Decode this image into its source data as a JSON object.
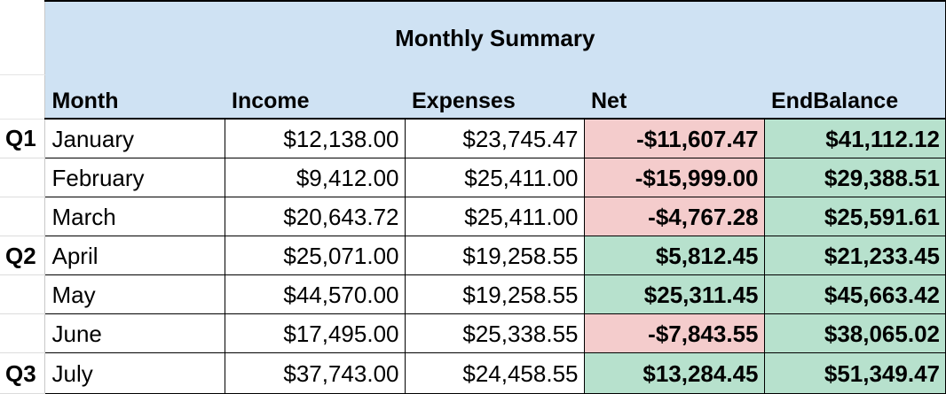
{
  "sheet": {
    "title": "Monthly Summary",
    "headers": [
      "Month",
      "Income",
      "Expenses",
      "Net",
      "EndBalance"
    ],
    "colors": {
      "header_fill": "#cfe2f3",
      "negative_fill": "#f4cccc",
      "positive_fill": "#b7e1cd"
    },
    "rows": [
      {
        "quarter": "Q1",
        "month": "January",
        "income": "$12,138.00",
        "expenses": "$23,745.47",
        "net": "-$11,607.47",
        "end_balance": "$41,112.12",
        "net_status": "negative"
      },
      {
        "quarter": "",
        "month": "February",
        "income": "$9,412.00",
        "expenses": "$25,411.00",
        "net": "-$15,999.00",
        "end_balance": "$29,388.51",
        "net_status": "negative"
      },
      {
        "quarter": "",
        "month": "March",
        "income": "$20,643.72",
        "expenses": "$25,411.00",
        "net": "-$4,767.28",
        "end_balance": "$25,591.61",
        "net_status": "negative"
      },
      {
        "quarter": "Q2",
        "month": "April",
        "income": "$25,071.00",
        "expenses": "$19,258.55",
        "net": "$5,812.45",
        "end_balance": "$21,233.45",
        "net_status": "positive"
      },
      {
        "quarter": "",
        "month": "May",
        "income": "$44,570.00",
        "expenses": "$19,258.55",
        "net": "$25,311.45",
        "end_balance": "$45,663.42",
        "net_status": "positive"
      },
      {
        "quarter": "",
        "month": "June",
        "income": "$17,495.00",
        "expenses": "$25,338.55",
        "net": "-$7,843.55",
        "end_balance": "$38,065.02",
        "net_status": "negative"
      },
      {
        "quarter": "Q3",
        "month": "July",
        "income": "$37,743.00",
        "expenses": "$24,458.55",
        "net": "$13,284.45",
        "end_balance": "$51,349.47",
        "net_status": "positive"
      }
    ]
  }
}
